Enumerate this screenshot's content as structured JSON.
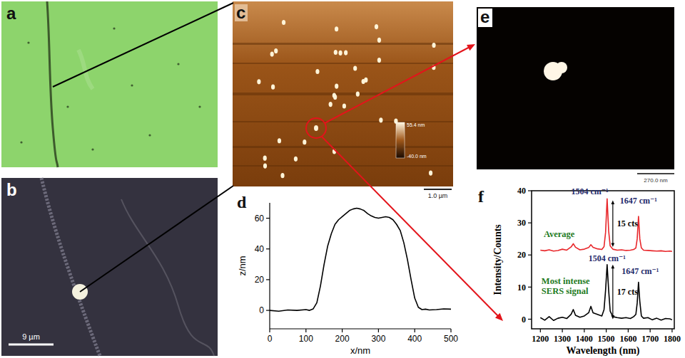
{
  "panels": {
    "a": {
      "letter": "a"
    },
    "b": {
      "letter": "b",
      "scale_bar": "9 µm"
    },
    "c": {
      "letter": "c",
      "scale_bar": "1.0 µm",
      "color_bar": {
        "max_label": "55.4 nm",
        "min_label": "-40.0 nm"
      }
    },
    "e": {
      "letter": "e",
      "scale_bar": "270.0 nm"
    }
  },
  "chart_data": [
    {
      "panel_label": "d",
      "type": "line",
      "x_label": "x/nm",
      "y_label": "z/nm",
      "xlim": [
        0,
        500
      ],
      "ylim": [
        -12,
        70
      ],
      "xticks": [
        0,
        100,
        200,
        300,
        400,
        500
      ],
      "yticks": [
        0,
        20,
        40,
        60
      ],
      "grid": false,
      "series": [
        {
          "color": "#000000",
          "x": [
            0,
            25,
            50,
            75,
            100,
            110,
            120,
            130,
            140,
            150,
            160,
            170,
            180,
            190,
            200,
            210,
            220,
            230,
            240,
            250,
            260,
            270,
            280,
            290,
            300,
            310,
            320,
            330,
            340,
            350,
            360,
            370,
            380,
            390,
            400,
            410,
            420,
            430,
            440,
            460,
            480,
            500
          ],
          "values": [
            0,
            -0.5,
            0.3,
            0,
            0.5,
            0,
            1,
            5,
            16,
            30,
            42,
            50,
            56,
            59,
            61,
            63,
            65,
            66,
            66.5,
            66,
            65,
            63,
            61.5,
            60.5,
            60,
            60.5,
            61,
            60.5,
            59,
            56,
            52,
            44,
            33,
            20,
            8,
            2,
            0.5,
            0.8,
            0.3,
            0.5,
            1,
            0.8
          ]
        }
      ]
    },
    {
      "panel_label": "f",
      "type": "line",
      "x_label": "Wavelength (nm)",
      "y_label": "Intensity/Counts",
      "xlim": [
        1160,
        1810
      ],
      "ylim": [
        -3,
        40
      ],
      "xticks": [
        1200,
        1300,
        1400,
        1500,
        1600,
        1700,
        1800
      ],
      "yticks": [
        0,
        10,
        20,
        30,
        40
      ],
      "grid": false,
      "series": [
        {
          "color": "#e8262a",
          "x": [
            1200,
            1220,
            1240,
            1260,
            1280,
            1300,
            1320,
            1340,
            1350,
            1360,
            1380,
            1400,
            1420,
            1430,
            1440,
            1460,
            1480,
            1490,
            1497,
            1504,
            1511,
            1518,
            1530,
            1550,
            1570,
            1590,
            1610,
            1625,
            1635,
            1641,
            1647,
            1653,
            1660,
            1670,
            1690,
            1710,
            1730,
            1750,
            1770,
            1790,
            1800
          ],
          "values": [
            21.5,
            21.3,
            21.6,
            21.2,
            21.4,
            21.8,
            21.5,
            22.5,
            23.5,
            22.4,
            21.6,
            21.8,
            22.3,
            23.2,
            22.4,
            21.9,
            21.7,
            22.6,
            27,
            37.5,
            27.5,
            22.8,
            21.8,
            21.5,
            21.6,
            21.4,
            21.5,
            21.7,
            22.2,
            25,
            32,
            25,
            22.2,
            21.5,
            21.4,
            21.3,
            21.2,
            21.3,
            21.1,
            21.2,
            21.1
          ]
        },
        {
          "color": "#000000",
          "x": [
            1200,
            1220,
            1240,
            1260,
            1280,
            1300,
            1320,
            1340,
            1350,
            1360,
            1380,
            1400,
            1420,
            1430,
            1440,
            1460,
            1480,
            1490,
            1497,
            1504,
            1511,
            1518,
            1530,
            1550,
            1570,
            1590,
            1610,
            1625,
            1635,
            1641,
            1647,
            1653,
            1660,
            1670,
            1690,
            1710,
            1730,
            1750,
            1770,
            1790,
            1800
          ],
          "values": [
            0.5,
            -0.3,
            0.8,
            -0.4,
            0.3,
            0.6,
            0.2,
            1.5,
            3,
            1.2,
            0.6,
            1,
            2,
            4,
            2,
            1.5,
            1,
            3,
            9,
            17,
            9,
            2.5,
            0.8,
            0.5,
            0.3,
            0.5,
            0.2,
            0.8,
            1.5,
            5,
            11.5,
            5.5,
            1,
            0.3,
            0.5,
            -0.2,
            0.3,
            -0.3,
            0.2,
            0.1,
            -0.2
          ]
        }
      ],
      "peak_labels": [
        {
          "text": "1504 cm⁻¹",
          "x": 1425,
          "y": 38.8,
          "color": "#1f2a6b"
        },
        {
          "text": "1647 cm⁻¹",
          "x": 1647,
          "y": 36,
          "color": "#1f2a6b"
        },
        {
          "text": "1504 cm⁻¹",
          "x": 1504,
          "y": 18,
          "color": "#1f2a6b"
        },
        {
          "text": "1647 cm⁻¹",
          "x": 1655,
          "y": 14,
          "color": "#1f2a6b"
        }
      ],
      "notes": [
        {
          "text": "Average",
          "x": 1215,
          "y": 25.5,
          "color": "#1e7b1e"
        },
        {
          "text": "Most intense SERS signal",
          "x": 1205,
          "y": 11,
          "color": "#1e7b1e"
        }
      ],
      "arrows": [
        {
          "text": "15 cts",
          "x": 1530,
          "y_from": 22.5,
          "y_to": 37
        },
        {
          "text": "17 cts",
          "x": 1530,
          "y_from": 0,
          "y_to": 17
        }
      ]
    }
  ]
}
